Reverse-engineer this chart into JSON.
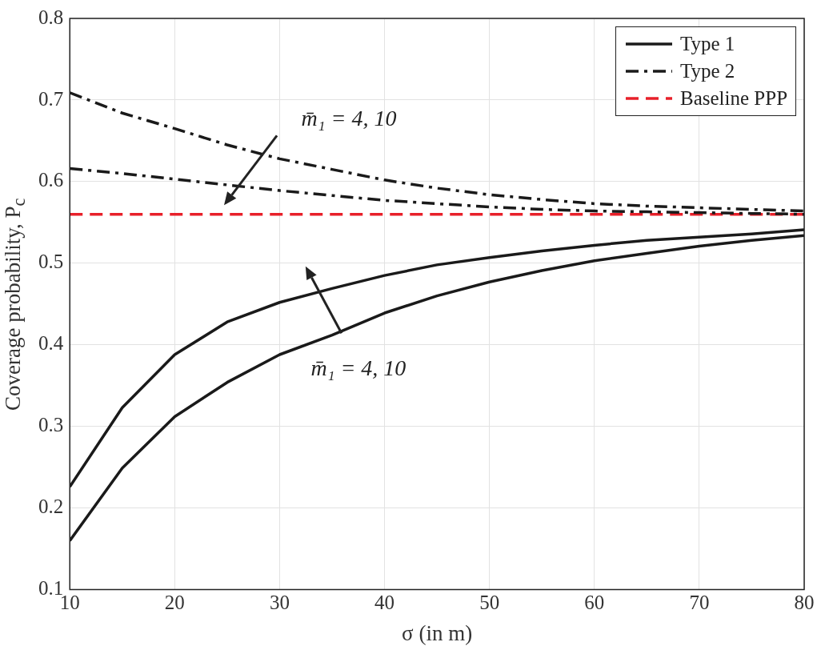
{
  "chart_data": {
    "type": "line",
    "xlabel": "σ (in m)",
    "ylabel": "Coverage probability, P$_{c}$",
    "x": [
      10,
      15,
      20,
      25,
      30,
      35,
      40,
      45,
      50,
      55,
      60,
      65,
      70,
      75,
      80
    ],
    "xlim": [
      10,
      80
    ],
    "xticks": [
      10,
      20,
      30,
      40,
      50,
      60,
      70,
      80
    ],
    "ylim": [
      0.1,
      0.8
    ],
    "yticks": [
      0.1,
      0.2,
      0.3,
      0.4,
      0.5,
      0.6,
      0.7,
      0.8
    ],
    "grid": true,
    "legend": "top right",
    "marker": "none",
    "series": [
      {
        "name": "Type 1",
        "color": "#1a1a1a",
        "line_style": "solid",
        "values": [
          0.226,
          0.323,
          0.388,
          0.428,
          0.452,
          0.469,
          0.485,
          0.498,
          0.507,
          0.515,
          0.522,
          0.528,
          0.532,
          0.536,
          0.541
        ]
      },
      {
        "color": "#1a1a1a",
        "line_style": "solid",
        "values": [
          0.16,
          0.249,
          0.312,
          0.354,
          0.388,
          0.412,
          0.439,
          0.46,
          0.477,
          0.491,
          0.503,
          0.512,
          0.521,
          0.528,
          0.534
        ]
      },
      {
        "name": "Type 2",
        "color": "#1a1a1a",
        "line_style": "dashdot",
        "values": [
          0.709,
          0.684,
          0.665,
          0.645,
          0.628,
          0.615,
          0.602,
          0.592,
          0.584,
          0.578,
          0.573,
          0.57,
          0.568,
          0.566,
          0.564
        ]
      },
      {
        "color": "#1a1a1a",
        "line_style": "dashdot",
        "values": [
          0.616,
          0.61,
          0.603,
          0.596,
          0.589,
          0.583,
          0.577,
          0.573,
          0.569,
          0.566,
          0.564,
          0.563,
          0.562,
          0.561,
          0.56
        ]
      },
      {
        "name": "Baseline PPP",
        "color": "#e8202a",
        "line_style": "dashed",
        "values": [
          0.56,
          0.56,
          0.56,
          0.56,
          0.56,
          0.56,
          0.56,
          0.56,
          0.56,
          0.56,
          0.56,
          0.56,
          0.56,
          0.56,
          0.56
        ]
      }
    ],
    "annotations": [
      "m̄₁ = 4, 10",
      "m̄₁ = 4, 10"
    ]
  }
}
